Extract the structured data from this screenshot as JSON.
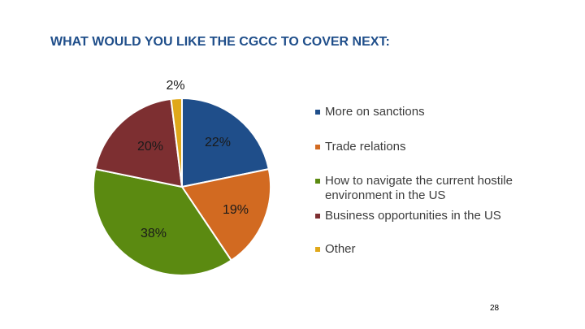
{
  "chart_data": {
    "type": "pie",
    "title": "WHAT WOULD YOU LIKE THE CGCC TO COVER NEXT:",
    "slices": [
      {
        "label": "More on sanctions",
        "value": 22,
        "display": "22%",
        "color": "#1f4e8a"
      },
      {
        "label": "Trade relations",
        "value": 19,
        "display": "19%",
        "color": "#d26a21"
      },
      {
        "label": "How to navigate the current hostile environment in the US",
        "value": 38,
        "display": "38%",
        "color": "#5b8a11"
      },
      {
        "label": "Business opportunities in the US",
        "value": 20,
        "display": "20%",
        "color": "#7d2f31"
      },
      {
        "label": "Other",
        "value": 2,
        "display": "2%",
        "color": "#e0a81a"
      }
    ],
    "legend_position": "right"
  },
  "page_number": "28"
}
